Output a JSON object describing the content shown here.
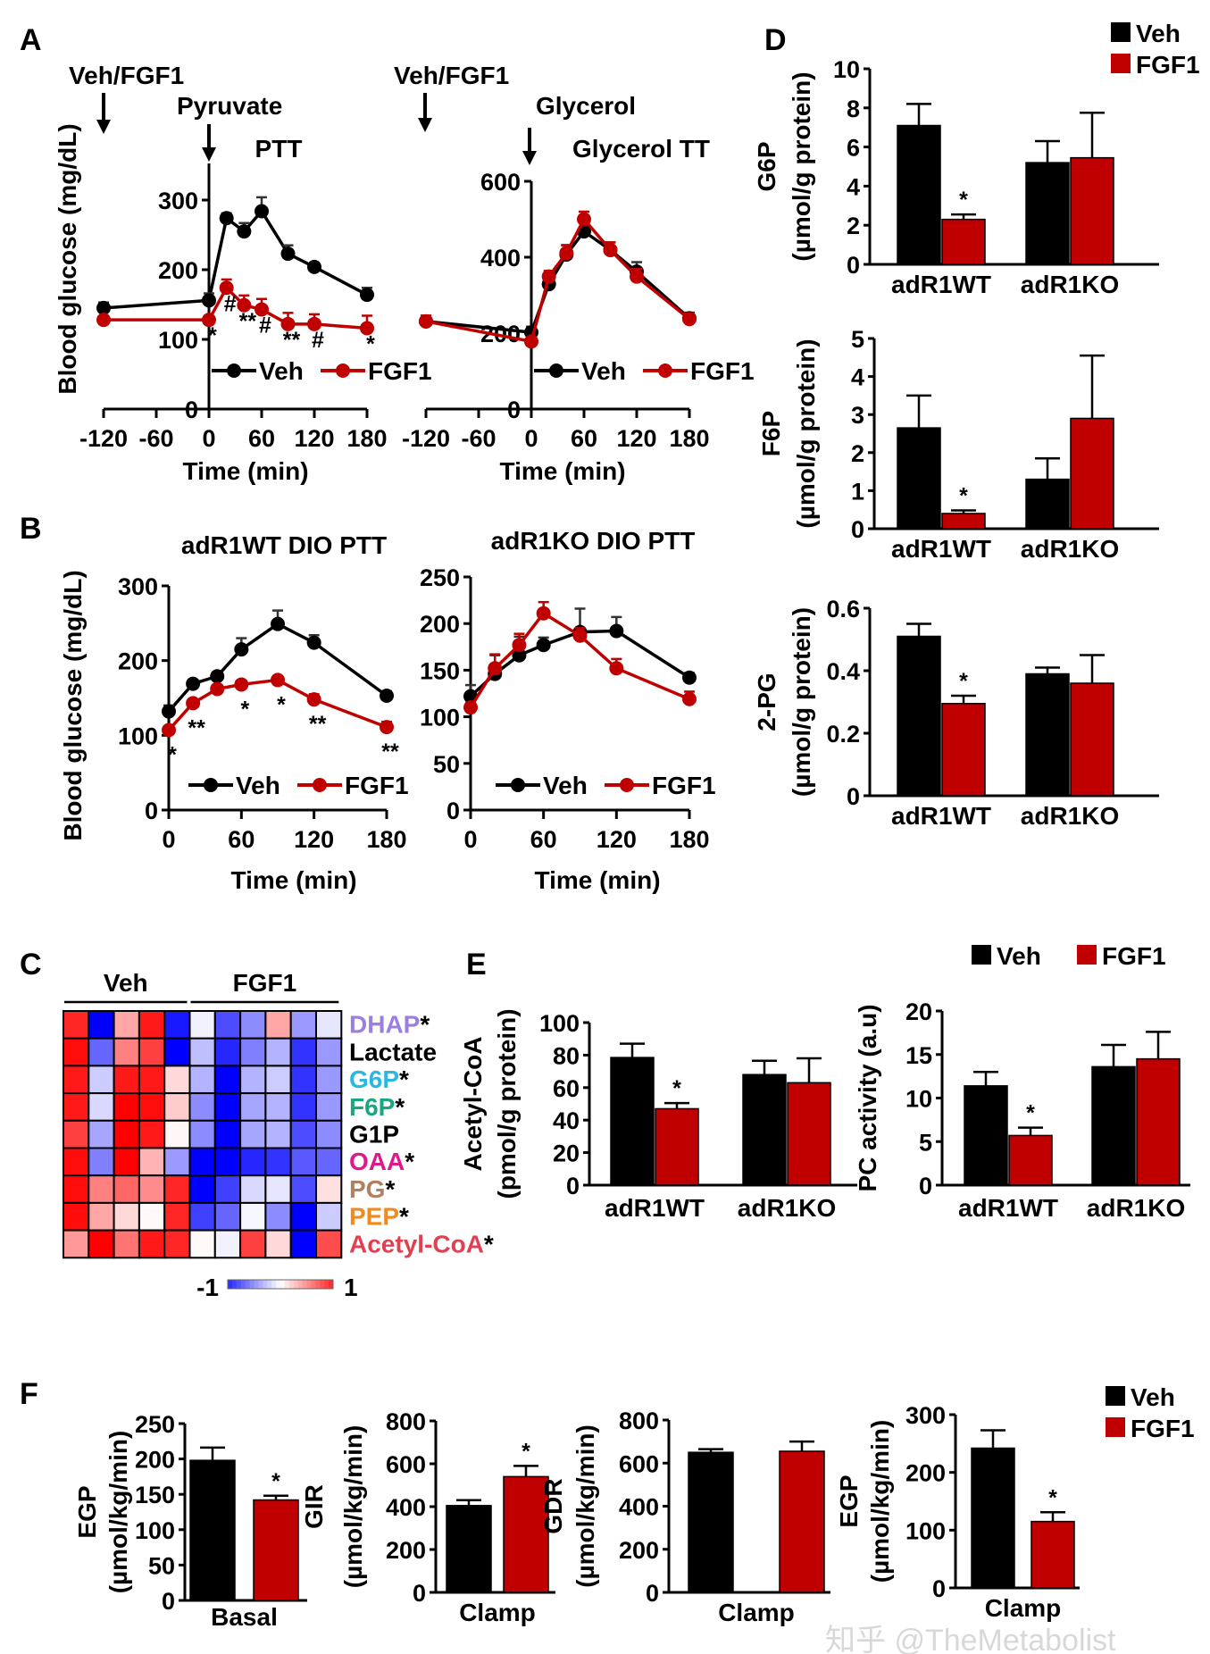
{
  "panel_labels": {
    "A": "A",
    "B": "B",
    "C": "C",
    "D": "D",
    "E": "E",
    "F": "F"
  },
  "watermark": "知乎 @TheMetabolist",
  "colors": {
    "veh": "#000000",
    "fgf1": "#c00000",
    "heat_low": "#0000ff",
    "heat_mid": "#ffffff",
    "heat_high": "#ff0000"
  },
  "chart_data": [
    {
      "id": "A_ptt",
      "type": "line",
      "title": "PTT",
      "treatment_label": "Veh/FGF1",
      "injection_label": "Pyruvate",
      "xlabel": "Time (min)",
      "ylabel": "Blood glucose (mg/dL)",
      "xlim": [
        -120,
        180
      ],
      "ylim": [
        0,
        300
      ],
      "xticks": [
        -120,
        -60,
        0,
        60,
        120,
        180
      ],
      "yticks": [
        0,
        100,
        200,
        300
      ],
      "x": [
        -120,
        0,
        20,
        40,
        60,
        90,
        120,
        180
      ],
      "series": [
        {
          "name": "Veh",
          "color": "#000000",
          "values": [
            145,
            156,
            274,
            255,
            284,
            223,
            204,
            164
          ],
          "errors": [
            8,
            10,
            7,
            12,
            20,
            12,
            6,
            10
          ]
        },
        {
          "name": "FGF1",
          "color": "#c00000",
          "values": [
            128,
            128,
            174,
            149,
            143,
            122,
            122,
            116
          ],
          "errors": [
            0,
            0,
            12,
            14,
            15,
            16,
            14,
            18
          ]
        }
      ],
      "significance": [
        {
          "x": 0,
          "label": "*"
        },
        {
          "x": 20,
          "label": "#"
        },
        {
          "x": 40,
          "label": "**"
        },
        {
          "x": 60,
          "label": "#"
        },
        {
          "x": 90,
          "label": "**"
        },
        {
          "x": 120,
          "label": "#"
        },
        {
          "x": 180,
          "label": "*"
        }
      ]
    },
    {
      "id": "A_gtt",
      "type": "line",
      "title": "Glycerol TT",
      "treatment_label": "Veh/FGF1",
      "injection_label": "Glycerol",
      "xlabel": "Time (min)",
      "ylabel": "",
      "xlim": [
        -120,
        180
      ],
      "ylim": [
        0,
        600
      ],
      "xticks": [
        -120,
        -60,
        0,
        60,
        120,
        180
      ],
      "yticks": [
        0,
        200,
        400,
        600
      ],
      "x": [
        -120,
        0,
        20,
        40,
        60,
        90,
        120,
        180
      ],
      "series": [
        {
          "name": "Veh",
          "color": "#000000",
          "values": [
            231,
            202,
            329,
            407,
            468,
            419,
            362,
            239
          ],
          "errors": [
            15,
            15,
            20,
            25,
            25,
            20,
            25,
            15
          ]
        },
        {
          "name": "FGF1",
          "color": "#c00000",
          "values": [
            231,
            178,
            349,
            411,
            500,
            419,
            349,
            237
          ],
          "errors": [
            15,
            10,
            15,
            20,
            20,
            20,
            20,
            15
          ]
        }
      ],
      "significance": []
    },
    {
      "id": "B_wt",
      "type": "line",
      "title": "adR1WT DIO PTT",
      "xlabel": "Time (min)",
      "ylabel": "Blood glucose (mg/dL)",
      "xlim": [
        0,
        180
      ],
      "ylim": [
        0,
        300
      ],
      "xticks": [
        0,
        60,
        120,
        180
      ],
      "yticks": [
        0,
        100,
        200,
        300
      ],
      "x": [
        0,
        20,
        40,
        60,
        90,
        120,
        180
      ],
      "series": [
        {
          "name": "Veh",
          "color": "#000000",
          "values": [
            132,
            169,
            179,
            215,
            249,
            224,
            153
          ],
          "errors": [
            8,
            5,
            5,
            15,
            18,
            10,
            6
          ]
        },
        {
          "name": "FGF1",
          "color": "#c00000",
          "values": [
            107,
            143,
            162,
            168,
            174,
            148,
            111
          ],
          "errors": [
            5,
            5,
            5,
            5,
            5,
            7,
            7
          ]
        }
      ],
      "significance": [
        {
          "x": 0,
          "label": "*"
        },
        {
          "x": 20,
          "label": "**"
        },
        {
          "x": 60,
          "label": "*"
        },
        {
          "x": 90,
          "label": "*"
        },
        {
          "x": 120,
          "label": "**"
        },
        {
          "x": 180,
          "label": "**"
        }
      ]
    },
    {
      "id": "B_ko",
      "type": "line",
      "title": "adR1KO DIO PTT",
      "xlabel": "Time (min)",
      "ylabel": "",
      "xlim": [
        0,
        180
      ],
      "ylim": [
        0,
        250
      ],
      "xticks": [
        0,
        60,
        120,
        180
      ],
      "yticks": [
        0,
        50,
        100,
        150,
        200,
        250
      ],
      "x": [
        0,
        20,
        40,
        60,
        90,
        120,
        180
      ],
      "series": [
        {
          "name": "Veh",
          "color": "#000000",
          "values": [
            122,
            146,
            166,
            177,
            191,
            192,
            142
          ],
          "errors": [
            12,
            20,
            20,
            8,
            25,
            15,
            5
          ]
        },
        {
          "name": "FGF1",
          "color": "#c00000",
          "values": [
            110,
            152,
            177,
            211,
            187,
            152,
            119
          ],
          "errors": [
            5,
            15,
            12,
            12,
            8,
            10,
            8
          ]
        }
      ],
      "significance": []
    },
    {
      "id": "C_heat",
      "type": "heatmap",
      "column_groups": [
        {
          "label": "Veh",
          "count": 5
        },
        {
          "label": "FGF1",
          "count": 6
        }
      ],
      "rows": [
        {
          "label": "DHAP",
          "star": "*",
          "color": "#9b7fe0",
          "values": [
            0.85,
            -1,
            0.35,
            0.9,
            -0.9,
            -0.05,
            -0.7,
            -0.45,
            0.35,
            -0.4,
            -0.1
          ]
        },
        {
          "label": "Lactate",
          "star": "",
          "color": "#000000",
          "values": [
            0.95,
            -0.6,
            0.5,
            0.75,
            -1,
            -0.25,
            -0.85,
            -0.5,
            -0.3,
            -0.8,
            -0.4
          ]
        },
        {
          "label": "G6P",
          "star": "*",
          "color": "#2ab8e0",
          "values": [
            0.9,
            -0.2,
            0.9,
            0.9,
            0.15,
            -0.3,
            -1,
            -0.3,
            -0.2,
            -0.8,
            -0.4
          ]
        },
        {
          "label": "F6P",
          "star": "*",
          "color": "#1aa77f",
          "values": [
            0.9,
            -0.15,
            1,
            0.95,
            0.2,
            -0.45,
            -1,
            -0.35,
            -0.3,
            -0.8,
            -0.4
          ]
        },
        {
          "label": "G1P",
          "star": "",
          "color": "#000000",
          "values": [
            0.75,
            -0.35,
            1,
            0.9,
            0.03,
            -0.45,
            -1,
            -0.35,
            -0.3,
            -0.7,
            -0.45
          ]
        },
        {
          "label": "OAA",
          "star": "*",
          "color": "#e0188a",
          "values": [
            0.95,
            -0.5,
            1,
            0.3,
            -0.4,
            -1,
            -1,
            -0.85,
            -0.8,
            -0.65,
            -0.6
          ]
        },
        {
          "label": "PG",
          "star": "*",
          "color": "#b08060",
          "values": [
            0.95,
            0.5,
            0.6,
            0.45,
            0.85,
            -1,
            -0.75,
            -0.15,
            -0.1,
            -0.7,
            0.12
          ]
        },
        {
          "label": "PEP",
          "star": "*",
          "color": "#f08a1e",
          "values": [
            0.95,
            0.35,
            0.15,
            0.02,
            0.85,
            -0.75,
            -0.6,
            -0.03,
            -0.45,
            -1,
            -0.2
          ]
        },
        {
          "label": "Acetyl-CoA",
          "star": "*",
          "color": "#e04050",
          "values": [
            0.4,
            1,
            0.55,
            0.9,
            0.85,
            0.02,
            -0.05,
            0.75,
            0.15,
            -1,
            0.7
          ]
        }
      ],
      "colorbar": {
        "min_label": "-1",
        "max_label": "1",
        "range": [
          -1,
          1
        ]
      }
    },
    {
      "id": "D_g6p",
      "type": "bar",
      "ylabel": "G6P",
      "ylabel_unit": "(µmol/g protein)",
      "categories": [
        "adR1WT",
        "adR1KO"
      ],
      "ylim": [
        0,
        10
      ],
      "yticks": [
        0,
        2,
        4,
        6,
        8,
        10
      ],
      "series": [
        {
          "name": "Veh",
          "color": "#000000",
          "values": [
            7.1,
            5.2
          ],
          "errors": [
            1.1,
            1.1
          ]
        },
        {
          "name": "FGF1",
          "color": "#c00000",
          "values": [
            2.3,
            5.45
          ],
          "errors": [
            0.25,
            2.3
          ]
        }
      ],
      "significance": [
        {
          "category": 0,
          "series": 1,
          "label": "*"
        }
      ],
      "legend": [
        "Veh",
        "FGF1"
      ]
    },
    {
      "id": "D_f6p",
      "type": "bar",
      "ylabel": "F6P",
      "ylabel_unit": "(µmol/g protein)",
      "categories": [
        "adR1WT",
        "adR1KO"
      ],
      "ylim": [
        0,
        5
      ],
      "yticks": [
        0,
        1,
        2,
        3,
        4,
        5
      ],
      "series": [
        {
          "name": "Veh",
          "color": "#000000",
          "values": [
            2.65,
            1.3
          ],
          "errors": [
            0.85,
            0.55
          ]
        },
        {
          "name": "FGF1",
          "color": "#c00000",
          "values": [
            0.4,
            2.9
          ],
          "errors": [
            0.08,
            1.65
          ]
        }
      ],
      "significance": [
        {
          "category": 0,
          "series": 1,
          "label": "*"
        }
      ]
    },
    {
      "id": "D_2pg",
      "type": "bar",
      "ylabel": "2-PG",
      "ylabel_unit": "(µmol/g protein)",
      "categories": [
        "adR1WT",
        "adR1KO"
      ],
      "ylim": [
        0,
        0.6
      ],
      "yticks": [
        0,
        0.2,
        0.4,
        0.6
      ],
      "series": [
        {
          "name": "Veh",
          "color": "#000000",
          "values": [
            0.51,
            0.39
          ],
          "errors": [
            0.04,
            0.02
          ]
        },
        {
          "name": "FGF1",
          "color": "#c00000",
          "values": [
            0.295,
            0.36
          ],
          "errors": [
            0.025,
            0.09
          ]
        }
      ],
      "significance": [
        {
          "category": 0,
          "series": 1,
          "label": "*"
        }
      ]
    },
    {
      "id": "E_acoa",
      "type": "bar",
      "ylabel": "Acetyl-CoA",
      "ylabel_unit": "(pmol/g protein)",
      "categories": [
        "adR1WT",
        "adR1KO"
      ],
      "ylim": [
        0,
        100
      ],
      "yticks": [
        0,
        20,
        40,
        60,
        80,
        100
      ],
      "series": [
        {
          "name": "Veh",
          "color": "#000000",
          "values": [
            78.5,
            68
          ],
          "errors": [
            8.5,
            8.5
          ]
        },
        {
          "name": "FGF1",
          "color": "#c00000",
          "values": [
            47,
            63
          ],
          "errors": [
            3.5,
            15
          ]
        }
      ],
      "significance": [
        {
          "category": 0,
          "series": 1,
          "label": "*"
        }
      ]
    },
    {
      "id": "E_pc",
      "type": "bar",
      "ylabel": "PC activity (a.u)",
      "ylabel_unit": "",
      "categories": [
        "adR1WT",
        "adR1KO"
      ],
      "ylim": [
        0,
        20
      ],
      "yticks": [
        0,
        5,
        10,
        15,
        20
      ],
      "series": [
        {
          "name": "Veh",
          "color": "#000000",
          "values": [
            11.4,
            13.6
          ],
          "errors": [
            1.6,
            2.5
          ]
        },
        {
          "name": "FGF1",
          "color": "#c00000",
          "values": [
            5.7,
            14.5
          ],
          "errors": [
            0.9,
            3.1
          ]
        }
      ],
      "significance": [
        {
          "category": 0,
          "series": 1,
          "label": "*"
        }
      ],
      "legend": [
        "Veh",
        "FGF1"
      ]
    },
    {
      "id": "F_egp_basal",
      "type": "bar",
      "ylabel": "EGP",
      "ylabel_unit": "(µmol/kg/min)",
      "categories": [
        "Basal"
      ],
      "ylim": [
        0,
        250
      ],
      "yticks": [
        0,
        50,
        100,
        150,
        200,
        250
      ],
      "series": [
        {
          "name": "Veh",
          "color": "#000000",
          "values": [
            198
          ],
          "errors": [
            18
          ]
        },
        {
          "name": "FGF1",
          "color": "#c00000",
          "values": [
            142
          ],
          "errors": [
            6
          ]
        }
      ],
      "significance": [
        {
          "category": 0,
          "series": 1,
          "label": "*"
        }
      ]
    },
    {
      "id": "F_gir",
      "type": "bar",
      "ylabel": "GIR",
      "ylabel_unit": "(µmol/kg/min)",
      "categories": [
        "Clamp"
      ],
      "ylim": [
        0,
        800
      ],
      "yticks": [
        0,
        200,
        400,
        600,
        800
      ],
      "series": [
        {
          "name": "Veh",
          "color": "#000000",
          "values": [
            405
          ],
          "errors": [
            25
          ]
        },
        {
          "name": "FGF1",
          "color": "#c00000",
          "values": [
            540
          ],
          "errors": [
            50
          ]
        }
      ],
      "significance": [
        {
          "category": 0,
          "series": 1,
          "label": "*"
        }
      ]
    },
    {
      "id": "F_gdr",
      "type": "bar",
      "ylabel": "GDR",
      "ylabel_unit": "(µmol/kg/min)",
      "categories": [
        "Clamp"
      ],
      "ylim": [
        0,
        800
      ],
      "yticks": [
        0,
        200,
        400,
        600,
        800
      ],
      "series": [
        {
          "name": "Veh",
          "color": "#000000",
          "values": [
            650
          ],
          "errors": [
            15
          ]
        },
        {
          "name": "FGF1",
          "color": "#c00000",
          "values": [
            655
          ],
          "errors": [
            45
          ]
        }
      ],
      "significance": []
    },
    {
      "id": "F_egp_clamp",
      "type": "bar",
      "ylabel": "EGP",
      "ylabel_unit": "(µmol/kg/min)",
      "categories": [
        "Clamp"
      ],
      "ylim": [
        0,
        300
      ],
      "yticks": [
        0,
        100,
        200,
        300
      ],
      "series": [
        {
          "name": "Veh",
          "color": "#000000",
          "values": [
            242
          ],
          "errors": [
            31
          ]
        },
        {
          "name": "FGF1",
          "color": "#c00000",
          "values": [
            115
          ],
          "errors": [
            16
          ]
        }
      ],
      "significance": [
        {
          "category": 0,
          "series": 1,
          "label": "*"
        }
      ],
      "legend": [
        "Veh",
        "FGF1"
      ]
    }
  ]
}
